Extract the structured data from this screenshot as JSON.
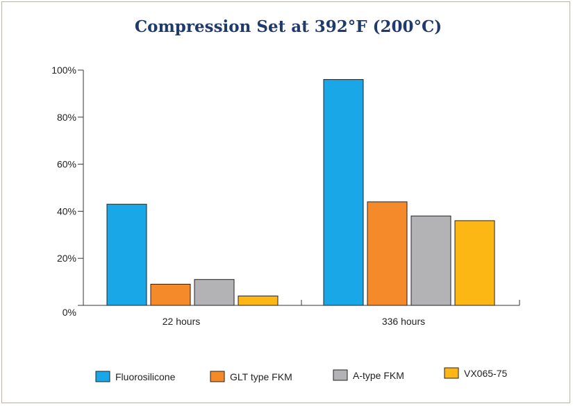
{
  "chart_data": {
    "type": "bar",
    "title": "Compression Set at 392°F (200°C)",
    "xlabel": "",
    "ylabel": "",
    "categories": [
      "22 hours",
      "336 hours"
    ],
    "series": [
      {
        "name": "Fluorosilicone",
        "color": "#1aa7e8",
        "values": [
          43,
          96
        ]
      },
      {
        "name": "GLT type FKM",
        "color": "#f58a2b",
        "values": [
          9,
          44
        ]
      },
      {
        "name": "A-type FKM",
        "color": "#b3b3b6",
        "values": [
          11,
          38
        ]
      },
      {
        "name": "VX065-75",
        "color": "#fdb714",
        "values": [
          4,
          36
        ]
      }
    ],
    "ylim": [
      0,
      100
    ],
    "yticks": [
      "0%",
      "20%",
      "40%",
      "60%",
      "80%",
      "100%"
    ],
    "ytick_values": [
      0,
      20,
      40,
      60,
      80,
      100
    ],
    "grid": false,
    "legend_position": "bottom"
  }
}
